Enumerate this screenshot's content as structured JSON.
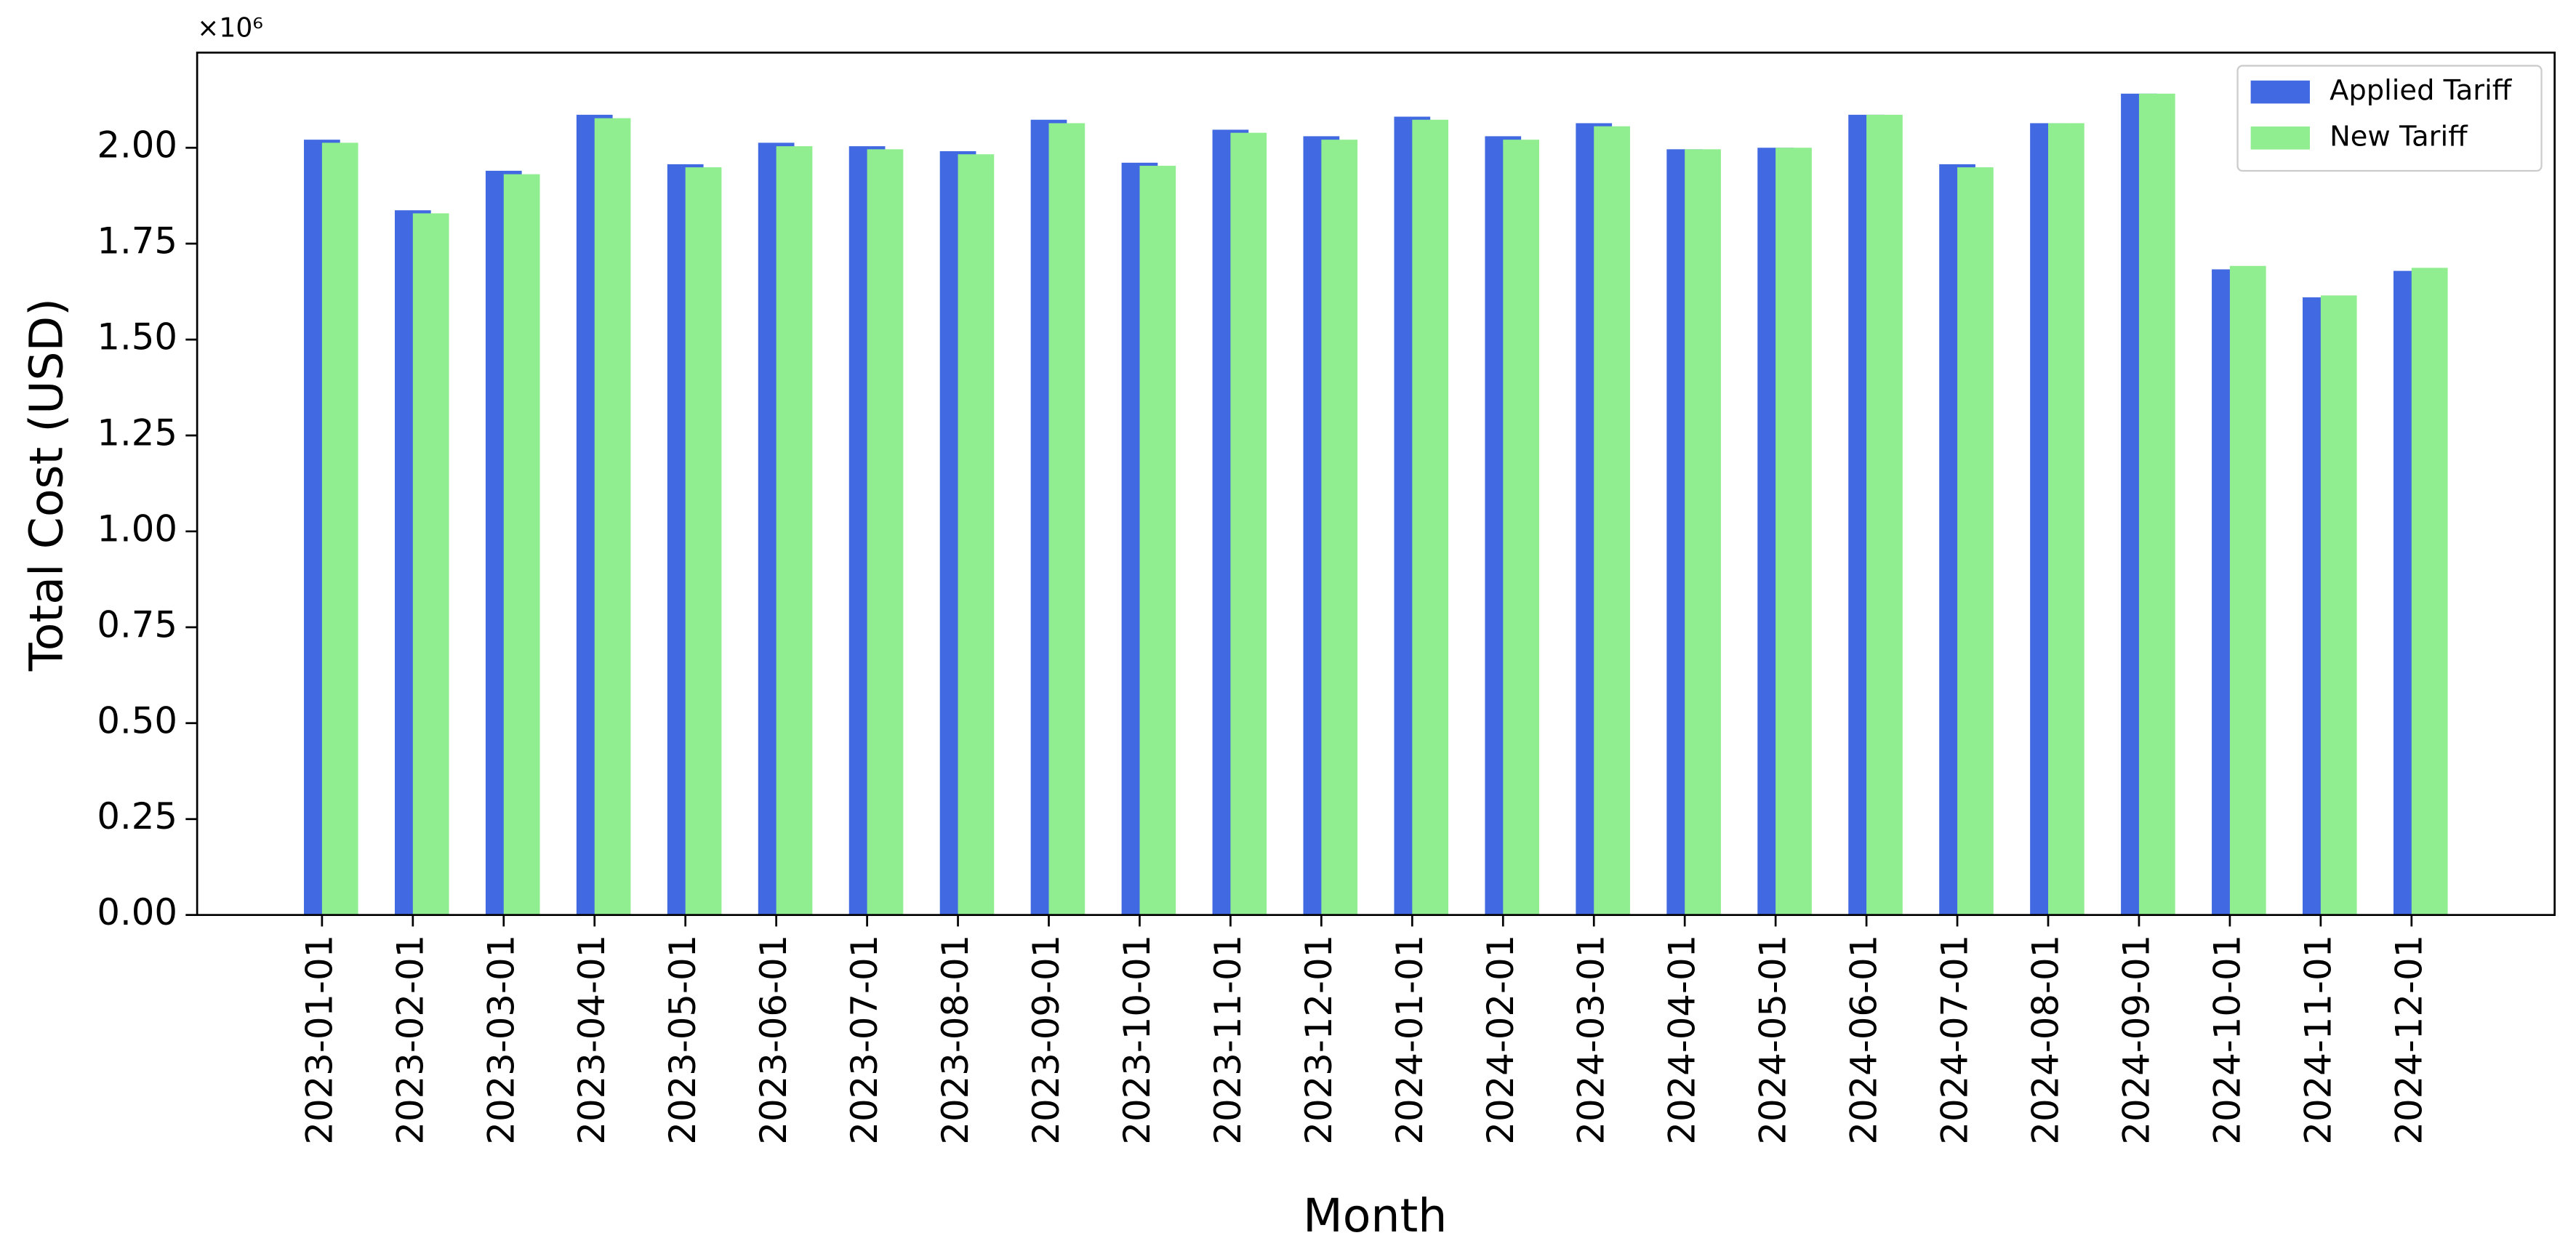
{
  "chart_data": {
    "type": "bar",
    "y_label": "Total Cost (USD)",
    "x_label": "Month",
    "y_offset_label": "×10⁶",
    "categories": [
      "2023-01-01",
      "2023-02-01",
      "2023-03-01",
      "2023-04-01",
      "2023-05-01",
      "2023-06-01",
      "2023-07-01",
      "2023-08-01",
      "2023-09-01",
      "2023-10-01",
      "2023-11-01",
      "2023-12-01",
      "2024-01-01",
      "2024-02-01",
      "2024-03-01",
      "2024-04-01",
      "2024-05-01",
      "2024-06-01",
      "2024-07-01",
      "2024-08-01",
      "2024-09-01",
      "2024-10-01",
      "2024-11-01",
      "2024-12-01"
    ],
    "series": [
      {
        "name": "Applied Tariff",
        "color": "#4169e1",
        "values": [
          2.021,
          1.837,
          1.94,
          2.086,
          1.957,
          2.013,
          2.004,
          1.991,
          2.073,
          1.961,
          2.047,
          2.03,
          2.081,
          2.03,
          2.064,
          1.996,
          2.0,
          2.086,
          1.957,
          2.064,
          2.141,
          1.683,
          1.61,
          1.679
        ]
      },
      {
        "name": "New Tariff",
        "color": "#90ee90",
        "values": [
          2.013,
          1.829,
          1.931,
          2.077,
          1.949,
          2.004,
          1.996,
          1.983,
          2.064,
          1.953,
          2.039,
          2.021,
          2.073,
          2.021,
          2.056,
          1.996,
          2.0,
          2.086,
          1.949,
          2.064,
          2.141,
          1.692,
          1.615,
          1.687
        ]
      }
    ],
    "ylim": [
      0,
      2.248
    ],
    "yticks": [
      {
        "value": 0,
        "label": "0.00"
      },
      {
        "value": 0.25,
        "label": "0.25"
      },
      {
        "value": 0.5,
        "label": "0.50"
      },
      {
        "value": 0.75,
        "label": "0.75"
      },
      {
        "value": 1,
        "label": "1.00"
      },
      {
        "value": 1.25,
        "label": "1.25"
      },
      {
        "value": 1.5,
        "label": "1.50"
      },
      {
        "value": 1.75,
        "label": "1.75"
      },
      {
        "value": 2,
        "label": "2.00"
      }
    ],
    "legend": "upper right",
    "grid": false
  }
}
